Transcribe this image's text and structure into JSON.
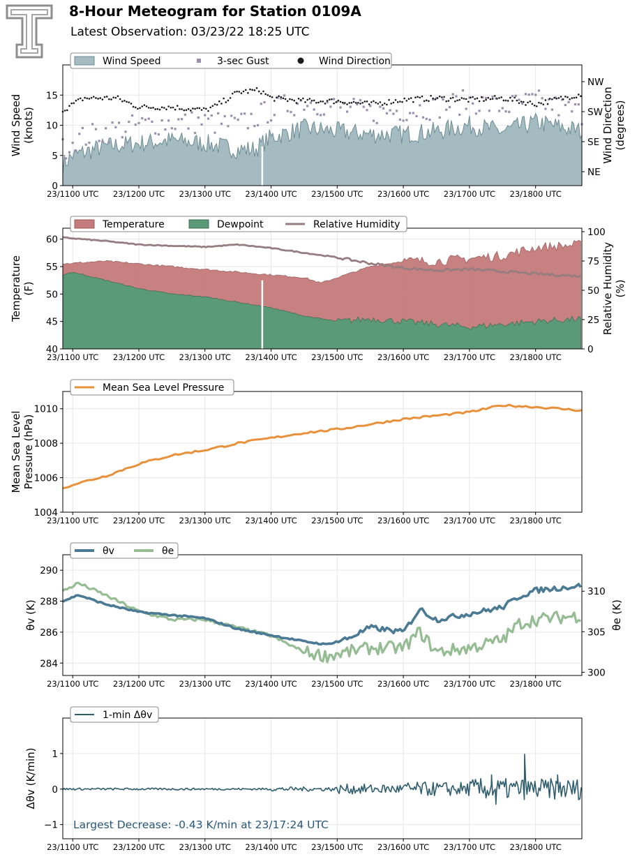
{
  "header": {
    "title": "8-Hour Meteogram for Station 0109A",
    "subtitle": "Latest Observation: 03/23/22 18:25 UTC",
    "logo_letter": "T"
  },
  "colors": {
    "wind_fill": "#a3bbc1",
    "wind_line": "#6d8c93",
    "gust": "#9a90ae",
    "direction": "#1a1a1a",
    "temperature": "#c57b7b",
    "dewpoint": "#5b9a78",
    "rh": "#967d80",
    "mslp": "#e8913a",
    "theta_v": "#4a7a94",
    "theta_e": "#95bc93",
    "dtheta": "#2f5d6e",
    "annotation": "#2a5878"
  },
  "time_ticks": [
    "23/1100 UTC",
    "23/1200 UTC",
    "23/1300 UTC",
    "23/1400 UTC",
    "23/1500 UTC",
    "23/1600 UTC",
    "23/1700 UTC",
    "23/1800 UTC"
  ],
  "chart_data": [
    {
      "type": "area",
      "xlim": [
        "23/1051 UTC",
        "23/1842 UTC"
      ],
      "ylabel": "Wind Speed\n(knots)",
      "ylim": [
        0,
        20
      ],
      "yticks": [
        "0",
        "5",
        "10",
        "15"
      ],
      "y2label": "Wind Direction\n(degrees)",
      "y2ticks": [
        "NE",
        "SE",
        "SW",
        "NW"
      ],
      "legend": [
        "Wind Speed",
        "3-sec Gust",
        "Wind Direction"
      ],
      "series": [
        {
          "name": "Wind Speed",
          "x": [
            "10:51",
            "11:00",
            "11:30",
            "12:00",
            "12:30",
            "13:00",
            "13:30",
            "13:45",
            "14:00",
            "14:30",
            "15:00",
            "15:30",
            "16:00",
            "16:30",
            "17:00",
            "17:30",
            "18:00",
            "18:42"
          ],
          "values": [
            3.5,
            5,
            6.5,
            7,
            7.5,
            7,
            6,
            6,
            8,
            9.5,
            9,
            8.5,
            8.5,
            9,
            10,
            9,
            10.5,
            9
          ]
        },
        {
          "name": "3-sec Gust",
          "x": [
            "10:51",
            "11:00",
            "11:30",
            "12:00",
            "12:30",
            "13:00",
            "13:30",
            "14:00",
            "14:30",
            "15:00",
            "15:30",
            "16:00",
            "16:30",
            "17:00",
            "17:30",
            "18:00",
            "18:42"
          ],
          "values": [
            6,
            7.5,
            9,
            10,
            10.5,
            10.5,
            10,
            12.5,
            14,
            13,
            12,
            12.5,
            13,
            14,
            13,
            14,
            12
          ]
        },
        {
          "name": "Wind Direction",
          "x": [
            "10:51",
            "11:10",
            "11:40",
            "12:00",
            "12:30",
            "13:00",
            "13:10",
            "13:30",
            "13:50",
            "14:00",
            "14:30",
            "15:00",
            "15:30",
            "16:00",
            "16:30",
            "17:00",
            "17:30",
            "18:00",
            "18:42"
          ],
          "values": [
            12.5,
            14.5,
            14.5,
            13,
            13,
            12.5,
            13.2,
            15.5,
            15.8,
            14.5,
            14,
            14,
            13.5,
            14.2,
            14.5,
            14.2,
            14.5,
            13.5,
            15.2
          ]
        }
      ]
    },
    {
      "type": "area",
      "xlim": [
        "23/1051 UTC",
        "23/1842 UTC"
      ],
      "ylabel": "Temperature\n(F)",
      "ylim": [
        40,
        62
      ],
      "yticks": [
        "40",
        "45",
        "50",
        "55",
        "60"
      ],
      "y2label": "Relative Humidity\n(%)",
      "y2ticks": [
        "0",
        "25",
        "50",
        "75",
        "100"
      ],
      "legend": [
        "Temperature",
        "Dewpoint",
        "Relative Humidity"
      ],
      "series": [
        {
          "name": "Temperature",
          "x": [
            "10:51",
            "11:30",
            "12:00",
            "12:30",
            "13:00",
            "13:30",
            "14:00",
            "14:30",
            "14:45",
            "15:00",
            "15:30",
            "16:00",
            "16:30",
            "17:00",
            "17:30",
            "18:00",
            "18:42"
          ],
          "values": [
            55.5,
            56,
            55.5,
            55,
            54.5,
            54,
            53.5,
            53,
            52,
            53,
            55,
            56,
            56,
            56.5,
            57,
            58.5,
            59
          ]
        },
        {
          "name": "Dewpoint",
          "x": [
            "10:51",
            "11:00",
            "11:30",
            "12:00",
            "12:30",
            "13:00",
            "13:30",
            "14:00",
            "14:30",
            "15:00",
            "15:30",
            "16:00",
            "16:30",
            "17:00",
            "17:30",
            "18:00",
            "18:42"
          ],
          "values": [
            53.5,
            54,
            52.5,
            51,
            50,
            49.5,
            48.5,
            47.5,
            46,
            45,
            45.5,
            45,
            44.5,
            44,
            44.5,
            45,
            45.5
          ]
        },
        {
          "name": "Relative Humidity",
          "x": [
            "10:51",
            "11:30",
            "12:00",
            "12:30",
            "13:00",
            "13:30",
            "14:00",
            "14:30",
            "15:00",
            "15:30",
            "16:00",
            "16:30",
            "17:00",
            "17:30",
            "18:00",
            "18:42"
          ],
          "values": [
            95,
            92,
            89,
            88,
            87,
            89,
            86,
            82,
            78,
            73,
            69,
            67,
            68,
            66,
            64,
            62
          ]
        }
      ]
    },
    {
      "type": "line",
      "xlim": [
        "23/1051 UTC",
        "23/1842 UTC"
      ],
      "ylabel": "Mean Sea Level\nPressure (hPa)",
      "ylim": [
        1004,
        1011
      ],
      "yticks": [
        "1004",
        "1006",
        "1008",
        "1010"
      ],
      "legend": [
        "Mean Sea Level Pressure"
      ],
      "series": [
        {
          "name": "Mean Sea Level Pressure",
          "x": [
            "10:51",
            "11:00",
            "11:30",
            "12:00",
            "12:30",
            "13:00",
            "13:30",
            "14:00",
            "14:30",
            "15:00",
            "15:30",
            "16:00",
            "16:30",
            "17:00",
            "17:30",
            "18:00",
            "18:42"
          ],
          "values": [
            1005.4,
            1005.6,
            1006.1,
            1006.8,
            1007.3,
            1007.6,
            1008,
            1008.3,
            1008.6,
            1008.8,
            1009.1,
            1009.4,
            1009.6,
            1009.8,
            1010.2,
            1010.1,
            1009.9
          ]
        }
      ]
    },
    {
      "type": "line",
      "xlim": [
        "23/1051 UTC",
        "23/1842 UTC"
      ],
      "ylabel": "θv (K)",
      "ylim": [
        283.2,
        291
      ],
      "yticks": [
        "284",
        "286",
        "288",
        "290"
      ],
      "y2label": "θe (K)",
      "y2ticks": [
        "300",
        "305",
        "310"
      ],
      "legend": [
        "θv",
        "θe"
      ],
      "series": [
        {
          "name": "θv",
          "axis": "left",
          "x": [
            "10:51",
            "11:05",
            "11:30",
            "12:00",
            "12:30",
            "13:00",
            "13:30",
            "14:00",
            "14:30",
            "14:50",
            "15:10",
            "15:30",
            "16:00",
            "16:15",
            "16:30",
            "17:00",
            "17:30",
            "17:45",
            "18:00",
            "18:42"
          ],
          "values": [
            288,
            288.4,
            287.8,
            287.3,
            287.1,
            286.9,
            286.2,
            285.8,
            285.4,
            285.2,
            285.6,
            286.3,
            286,
            287.5,
            286.8,
            287.2,
            287.6,
            288.3,
            288.7,
            289
          ]
        },
        {
          "name": "θe",
          "axis": "right",
          "x": [
            "10:51",
            "11:05",
            "11:30",
            "12:00",
            "12:30",
            "13:00",
            "13:30",
            "14:00",
            "14:30",
            "14:50",
            "15:10",
            "15:30",
            "16:00",
            "16:15",
            "16:30",
            "17:00",
            "17:30",
            "17:45",
            "18:00",
            "18:42"
          ],
          "values": [
            310,
            311,
            309.5,
            307.5,
            306.5,
            306.5,
            305.5,
            304.5,
            302.5,
            302,
            302.5,
            303,
            303,
            305,
            302.5,
            303,
            304,
            306,
            306.5,
            307
          ]
        }
      ]
    },
    {
      "type": "line",
      "xlim": [
        "23/1051 UTC",
        "23/1842 UTC"
      ],
      "ylabel": "Δθv (K/min)",
      "ylim": [
        -1.4,
        2.0
      ],
      "yticks": [
        "−1",
        "0",
        "1"
      ],
      "legend": [
        "1-min Δθv"
      ],
      "annotation": "Largest Decrease: -0.43 K/min at 23/17:24 UTC",
      "series": [
        {
          "name": "1-min Δθv",
          "x": [
            "10:51",
            "14:00",
            "15:00",
            "15:30",
            "16:00",
            "16:30",
            "17:00",
            "17:20",
            "17:24",
            "17:40",
            "17:50",
            "18:00",
            "18:20",
            "18:42"
          ],
          "values": [
            0,
            0,
            0.02,
            0.2,
            -0.1,
            0.25,
            -0.2,
            0.4,
            -0.43,
            0.3,
            0.98,
            -0.3,
            0.4,
            -0.2
          ]
        }
      ]
    }
  ]
}
